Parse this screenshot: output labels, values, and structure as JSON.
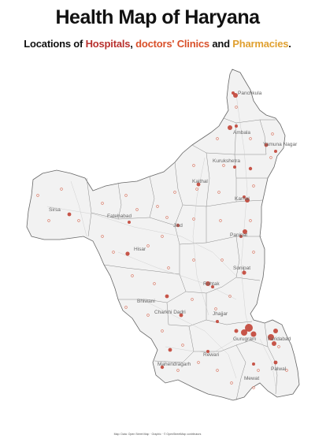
{
  "header": {
    "title": "Health Map of Haryana",
    "subtitle_prefix": "Locations of ",
    "subtitle_hospitals": "Hospitals",
    "subtitle_sep1": ", ",
    "subtitle_clinics": "doctors' Clinics",
    "subtitle_sep2": " and ",
    "subtitle_pharmacies": "Pharmacies",
    "subtitle_end": "."
  },
  "colors": {
    "hospital": "#b8312f",
    "clinic": "#d9502a",
    "pharmacy": "#e0a030",
    "region_fill": "#f2f2f2",
    "border": "#777777"
  },
  "districts": [
    {
      "name": "Panchkula"
    },
    {
      "name": "Ambala"
    },
    {
      "name": "Yamuna Nagar"
    },
    {
      "name": "Kurukshetra"
    },
    {
      "name": "Kaithal"
    },
    {
      "name": "Karnal"
    },
    {
      "name": "Sirsa"
    },
    {
      "name": "Fatehabad"
    },
    {
      "name": "Jind"
    },
    {
      "name": "Panipat"
    },
    {
      "name": "Hisar"
    },
    {
      "name": "Sonipat"
    },
    {
      "name": "Rohtak"
    },
    {
      "name": "Bhiwani"
    },
    {
      "name": "Charkhi Dadri"
    },
    {
      "name": "Jhajjar"
    },
    {
      "name": "Gurugram"
    },
    {
      "name": "Faridabad"
    },
    {
      "name": "Rewari"
    },
    {
      "name": "Mahendragarh"
    },
    {
      "name": "Palwal"
    },
    {
      "name": "Mewat"
    }
  ],
  "footer": {
    "credit": "Map: Data: Open Street Map · Graphic · © OpenStreetMap contributors"
  }
}
